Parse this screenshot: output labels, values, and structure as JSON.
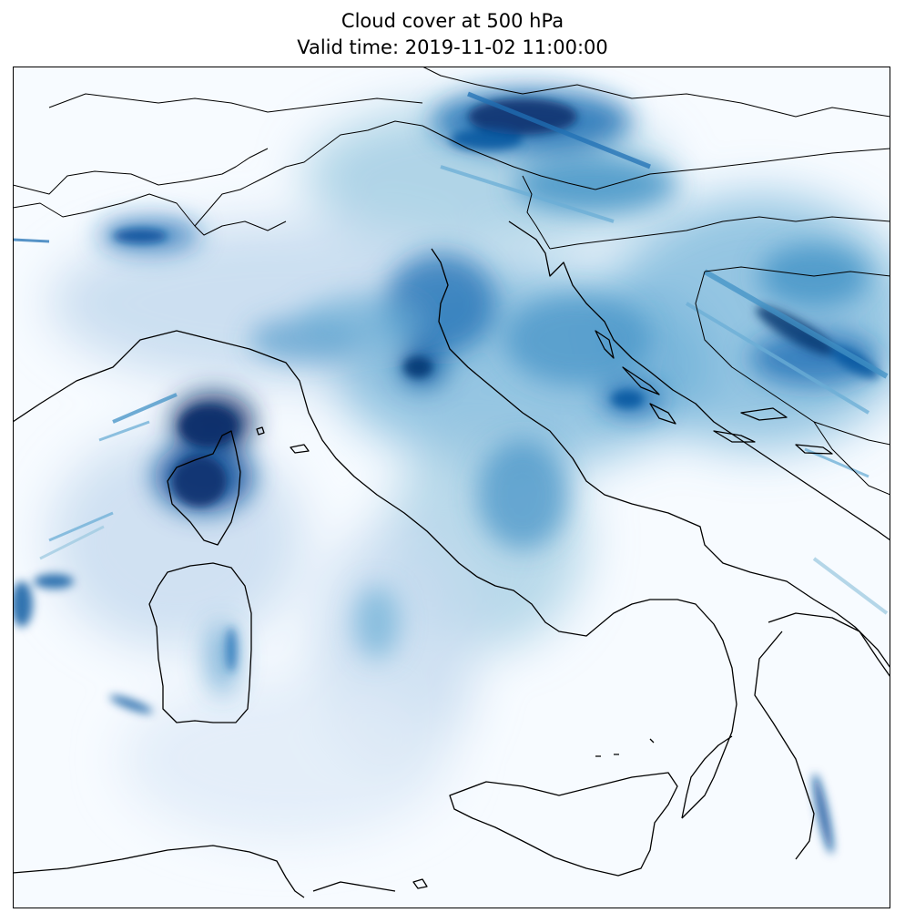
{
  "figure": {
    "title_line1": "Cloud cover at 500 hPa",
    "title_line2": "Valid time: 2019-11-02 11:00:00"
  },
  "map": {
    "field": "cloud cover",
    "level": "500 hPa",
    "colormap": "Blues",
    "colormap_colors": [
      "#f7fbff",
      "#deebf7",
      "#c6dbef",
      "#9ecae1",
      "#6baed6",
      "#4292c6",
      "#2171b5",
      "#08519c",
      "#08306b"
    ],
    "frame_color": "#000000",
    "coastline_color": "#000000",
    "background_color": "#f7fbff"
  }
}
